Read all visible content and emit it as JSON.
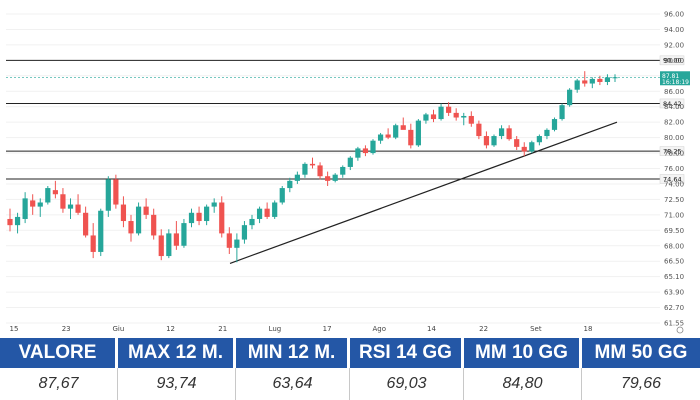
{
  "chart_data": {
    "type": "candlestick",
    "y_ticks": [
      "96.00",
      "94.00",
      "92.00",
      "90.00",
      "88.00",
      "86.00",
      "84.00",
      "82.00",
      "80.00",
      "78.00",
      "76.00",
      "74.00",
      "72.50",
      "71.00",
      "69.50",
      "68.00",
      "66.50",
      "65.10",
      "63.90",
      "62.70",
      "61.55"
    ],
    "x_ticks": [
      "15",
      "23",
      "Giu",
      "12",
      "21",
      "Lug",
      "17",
      "Ago",
      "14",
      "22",
      "Set",
      "18"
    ],
    "levels": [
      {
        "value": 90.0,
        "label": "90.00"
      },
      {
        "value": 84.42,
        "label": "84.42"
      },
      {
        "value": 78.25,
        "label": "78.25"
      },
      {
        "value": 74.64,
        "label": "74.64"
      }
    ],
    "current_price": {
      "value": 87.81,
      "label": "87.81",
      "sublabel": "16:18:19"
    },
    "trendline": {
      "start": {
        "date": "2024-06-25",
        "value": 66.3
      },
      "end": {
        "date": "2024-09-15",
        "value": 82.0
      }
    },
    "ohlc": [
      [
        70.6,
        71.6,
        69.4,
        70.0
      ],
      [
        70.0,
        71.2,
        69.2,
        70.8
      ],
      [
        70.6,
        73.2,
        70.2,
        72.6
      ],
      [
        72.4,
        73.0,
        71.0,
        71.8
      ],
      [
        71.8,
        72.6,
        70.8,
        72.2
      ],
      [
        72.2,
        73.8,
        72.0,
        73.6
      ],
      [
        73.4,
        74.4,
        72.6,
        73.0
      ],
      [
        73.0,
        73.6,
        71.2,
        71.6
      ],
      [
        71.6,
        72.6,
        70.6,
        72.0
      ],
      [
        72.0,
        73.0,
        71.0,
        71.2
      ],
      [
        71.2,
        71.8,
        68.8,
        69.0
      ],
      [
        69.0,
        70.2,
        66.8,
        67.4
      ],
      [
        67.4,
        71.6,
        67.0,
        71.4
      ],
      [
        71.4,
        75.0,
        70.8,
        74.6
      ],
      [
        74.6,
        75.2,
        71.6,
        72.0
      ],
      [
        72.0,
        72.8,
        69.8,
        70.4
      ],
      [
        70.4,
        71.0,
        68.4,
        69.2
      ],
      [
        69.2,
        72.2,
        69.0,
        71.8
      ],
      [
        71.8,
        72.6,
        70.6,
        71.0
      ],
      [
        71.0,
        71.6,
        68.6,
        69.0
      ],
      [
        69.0,
        69.6,
        66.6,
        67.0
      ],
      [
        67.0,
        69.6,
        66.8,
        69.2
      ],
      [
        69.2,
        70.4,
        67.6,
        68.0
      ],
      [
        68.0,
        70.6,
        67.8,
        70.2
      ],
      [
        70.2,
        71.6,
        69.8,
        71.2
      ],
      [
        71.2,
        71.8,
        70.0,
        70.4
      ],
      [
        70.4,
        72.0,
        70.0,
        71.8
      ],
      [
        71.8,
        72.6,
        71.2,
        72.2
      ],
      [
        72.2,
        72.8,
        68.8,
        69.2
      ],
      [
        69.2,
        69.8,
        67.2,
        67.8
      ],
      [
        67.8,
        69.2,
        66.4,
        68.6
      ],
      [
        68.6,
        70.4,
        68.2,
        70.0
      ],
      [
        70.0,
        71.0,
        69.6,
        70.6
      ],
      [
        70.6,
        71.8,
        70.2,
        71.6
      ],
      [
        71.6,
        72.2,
        70.6,
        70.8
      ],
      [
        70.8,
        72.4,
        70.6,
        72.2
      ],
      [
        72.2,
        73.8,
        72.0,
        73.6
      ],
      [
        73.6,
        74.8,
        73.2,
        74.4
      ],
      [
        74.4,
        75.6,
        74.0,
        75.2
      ],
      [
        75.2,
        76.8,
        74.8,
        76.6
      ],
      [
        76.6,
        77.4,
        76.0,
        76.4
      ],
      [
        76.4,
        76.8,
        74.6,
        75.0
      ],
      [
        75.0,
        75.6,
        73.8,
        74.4
      ],
      [
        74.4,
        75.4,
        74.2,
        75.2
      ],
      [
        75.2,
        76.4,
        74.8,
        76.2
      ],
      [
        76.2,
        77.6,
        75.8,
        77.4
      ],
      [
        77.4,
        78.8,
        77.0,
        78.6
      ],
      [
        78.6,
        79.0,
        77.6,
        78.0
      ],
      [
        78.0,
        79.8,
        77.8,
        79.6
      ],
      [
        79.6,
        80.6,
        79.2,
        80.4
      ],
      [
        80.4,
        81.2,
        79.8,
        80.0
      ],
      [
        80.0,
        81.8,
        79.8,
        81.6
      ],
      [
        81.6,
        82.6,
        81.2,
        81.0
      ],
      [
        81.0,
        81.8,
        78.6,
        79.0
      ],
      [
        79.0,
        82.4,
        78.8,
        82.2
      ],
      [
        82.2,
        83.2,
        81.8,
        83.0
      ],
      [
        83.0,
        83.6,
        82.0,
        82.4
      ],
      [
        82.4,
        84.4,
        82.2,
        84.0
      ],
      [
        84.0,
        84.6,
        82.8,
        83.2
      ],
      [
        83.2,
        83.8,
        82.2,
        82.6
      ],
      [
        82.6,
        83.2,
        81.6,
        82.8
      ],
      [
        82.8,
        83.4,
        81.4,
        81.8
      ],
      [
        81.8,
        82.2,
        79.8,
        80.2
      ],
      [
        80.2,
        80.8,
        78.6,
        79.0
      ],
      [
        79.0,
        80.4,
        78.8,
        80.2
      ],
      [
        80.2,
        81.6,
        79.8,
        81.2
      ],
      [
        81.2,
        81.6,
        79.6,
        79.8
      ],
      [
        79.8,
        80.2,
        78.4,
        78.8
      ],
      [
        78.8,
        79.4,
        77.6,
        78.2
      ],
      [
        78.2,
        79.6,
        78.0,
        79.4
      ],
      [
        79.4,
        80.4,
        79.0,
        80.2
      ],
      [
        80.2,
        81.2,
        79.8,
        81.0
      ],
      [
        81.0,
        82.6,
        80.8,
        82.4
      ],
      [
        82.4,
        84.4,
        82.2,
        84.2
      ],
      [
        84.2,
        86.4,
        84.0,
        86.2
      ],
      [
        86.2,
        87.6,
        85.8,
        87.4
      ],
      [
        87.4,
        88.6,
        86.6,
        87.0
      ],
      [
        87.0,
        87.8,
        86.4,
        87.6
      ],
      [
        87.6,
        88.0,
        86.8,
        87.2
      ],
      [
        87.2,
        88.2,
        86.8,
        87.8
      ],
      [
        87.8,
        88.2,
        87.2,
        87.81
      ]
    ]
  },
  "stats": {
    "headers": [
      "VALORE",
      "MAX 12 M.",
      "MIN 12 M.",
      "RSI 14 GG",
      "MM 10 GG",
      "MM 50 GG"
    ],
    "values": [
      "87,67",
      "93,74",
      "63,64",
      "69,03",
      "84,80",
      "79,66"
    ]
  },
  "colors": {
    "up": "#26a69a",
    "down": "#ef5350",
    "header_bg": "#2457a6"
  }
}
